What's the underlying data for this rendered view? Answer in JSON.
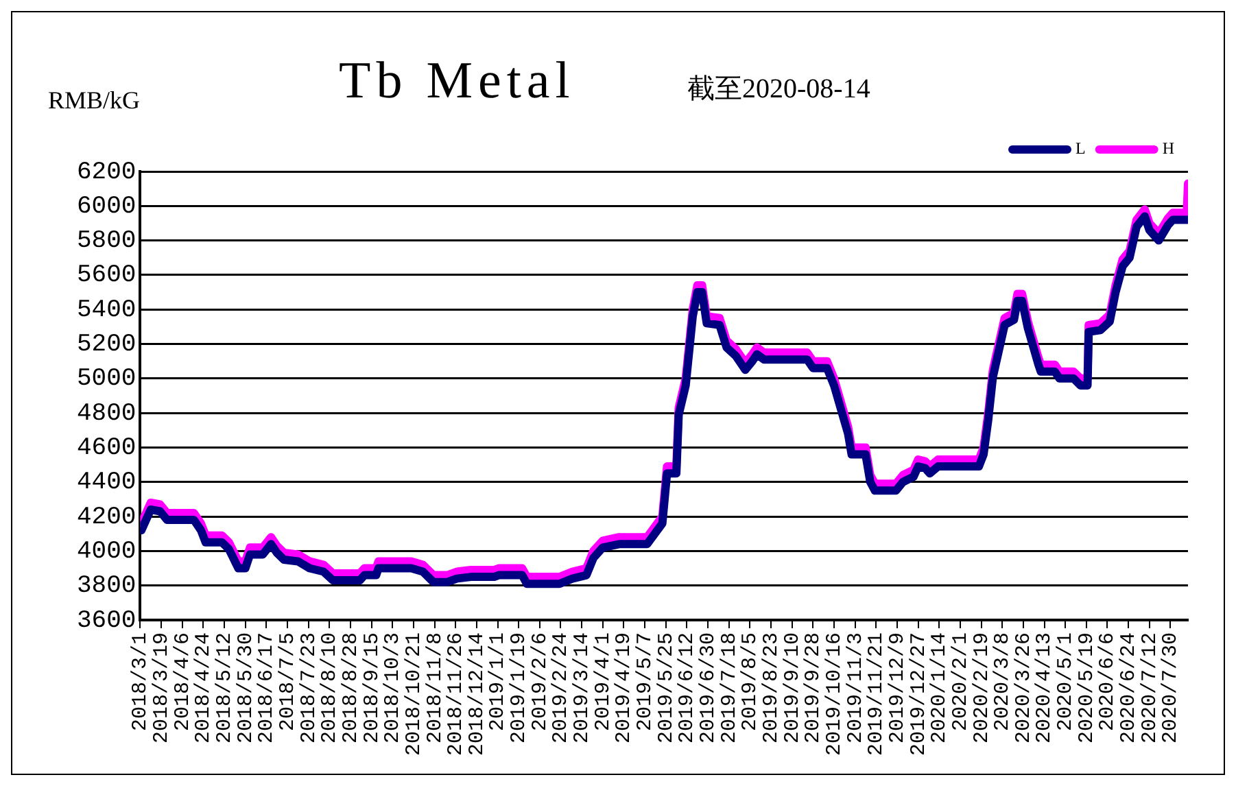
{
  "chart_data": {
    "type": "line",
    "title": "Tb Metal",
    "subtitle": "截至2020-08-14",
    "ylabel": "RMB/kG",
    "legend": "top right",
    "grid": "y",
    "marker": "none",
    "line_style": "solid",
    "ylim": [
      3600,
      6200
    ],
    "yticks": [
      3600,
      3800,
      4000,
      4200,
      4400,
      4600,
      4800,
      5000,
      5200,
      5400,
      5600,
      5800,
      6000,
      6200
    ],
    "xlim": [
      "2018-03-01",
      "2020-08-14"
    ],
    "xticks": [
      {
        "value": "2018-03-01",
        "label": "2018/3/1"
      },
      {
        "value": "2018-03-19",
        "label": "2018/3/19"
      },
      {
        "value": "2018-04-06",
        "label": "2018/4/6"
      },
      {
        "value": "2018-04-24",
        "label": "2018/4/24"
      },
      {
        "value": "2018-05-12",
        "label": "2018/5/12"
      },
      {
        "value": "2018-05-30",
        "label": "2018/5/30"
      },
      {
        "value": "2018-06-17",
        "label": "2018/6/17"
      },
      {
        "value": "2018-07-05",
        "label": "2018/7/5"
      },
      {
        "value": "2018-07-23",
        "label": "2018/7/23"
      },
      {
        "value": "2018-08-10",
        "label": "2018/8/10"
      },
      {
        "value": "2018-08-28",
        "label": "2018/8/28"
      },
      {
        "value": "2018-09-15",
        "label": "2018/9/15"
      },
      {
        "value": "2018-10-03",
        "label": "2018/10/3"
      },
      {
        "value": "2018-10-21",
        "label": "2018/10/21"
      },
      {
        "value": "2018-11-08",
        "label": "2018/11/8"
      },
      {
        "value": "2018-11-26",
        "label": "2018/11/26"
      },
      {
        "value": "2018-12-14",
        "label": "2018/12/14"
      },
      {
        "value": "2019-01-01",
        "label": "2019/1/1"
      },
      {
        "value": "2019-01-19",
        "label": "2019/1/19"
      },
      {
        "value": "2019-02-06",
        "label": "2019/2/6"
      },
      {
        "value": "2019-02-24",
        "label": "2019/2/24"
      },
      {
        "value": "2019-03-14",
        "label": "2019/3/14"
      },
      {
        "value": "2019-04-01",
        "label": "2019/4/1"
      },
      {
        "value": "2019-04-19",
        "label": "2019/4/19"
      },
      {
        "value": "2019-05-07",
        "label": "2019/5/7"
      },
      {
        "value": "2019-05-25",
        "label": "2019/5/25"
      },
      {
        "value": "2019-06-12",
        "label": "2019/6/12"
      },
      {
        "value": "2019-06-30",
        "label": "2019/6/30"
      },
      {
        "value": "2019-07-18",
        "label": "2019/7/18"
      },
      {
        "value": "2019-08-05",
        "label": "2019/8/5"
      },
      {
        "value": "2019-08-23",
        "label": "2019/8/23"
      },
      {
        "value": "2019-09-10",
        "label": "2019/9/10"
      },
      {
        "value": "2019-09-28",
        "label": "2019/9/28"
      },
      {
        "value": "2019-10-16",
        "label": "2019/10/16"
      },
      {
        "value": "2019-11-03",
        "label": "2019/11/3"
      },
      {
        "value": "2019-11-21",
        "label": "2019/11/21"
      },
      {
        "value": "2019-12-09",
        "label": "2019/12/9"
      },
      {
        "value": "2019-12-27",
        "label": "2019/12/27"
      },
      {
        "value": "2020-01-14",
        "label": "2020/1/14"
      },
      {
        "value": "2020-02-01",
        "label": "2020/2/1"
      },
      {
        "value": "2020-02-19",
        "label": "2020/2/19"
      },
      {
        "value": "2020-03-08",
        "label": "2020/3/8"
      },
      {
        "value": "2020-03-26",
        "label": "2020/3/26"
      },
      {
        "value": "2020-04-13",
        "label": "2020/4/13"
      },
      {
        "value": "2020-05-01",
        "label": "2020/5/1"
      },
      {
        "value": "2020-05-19",
        "label": "2020/5/19"
      },
      {
        "value": "2020-06-06",
        "label": "2020/6/6"
      },
      {
        "value": "2020-06-24",
        "label": "2020/6/24"
      },
      {
        "value": "2020-07-12",
        "label": "2020/7/12"
      },
      {
        "value": "2020-07-30",
        "label": "2020/7/30"
      }
    ],
    "x": [
      "2018-03-02",
      "2018-03-10",
      "2018-03-18",
      "2018-03-24",
      "2018-04-16",
      "2018-04-22",
      "2018-04-26",
      "2018-05-10",
      "2018-05-16",
      "2018-05-24",
      "2018-05-30",
      "2018-06-03",
      "2018-06-14",
      "2018-06-21",
      "2018-06-26",
      "2018-07-02",
      "2018-07-14",
      "2018-07-24",
      "2018-08-05",
      "2018-08-13",
      "2018-09-05",
      "2018-09-09",
      "2018-09-19",
      "2018-09-21",
      "2018-10-19",
      "2018-10-29",
      "2018-11-07",
      "2018-11-19",
      "2018-11-27",
      "2018-12-09",
      "2018-12-29",
      "2019-01-02",
      "2019-01-22",
      "2019-01-26",
      "2019-02-23",
      "2019-03-06",
      "2019-03-18",
      "2019-03-24",
      "2019-04-01",
      "2019-04-15",
      "2019-05-09",
      "2019-05-22",
      "2019-05-26",
      "2019-06-03",
      "2019-06-05",
      "2019-06-11",
      "2019-06-17",
      "2019-06-21",
      "2019-06-25",
      "2019-06-29",
      "2019-07-10",
      "2019-07-16",
      "2019-07-24",
      "2019-08-01",
      "2019-08-07",
      "2019-08-11",
      "2019-08-17",
      "2019-09-23",
      "2019-09-28",
      "2019-10-10",
      "2019-10-16",
      "2019-10-22",
      "2019-10-28",
      "2019-10-31",
      "2019-11-12",
      "2019-11-16",
      "2019-11-20",
      "2019-12-08",
      "2019-12-14",
      "2019-12-23",
      "2019-12-27",
      "2020-01-02",
      "2020-01-06",
      "2020-01-13",
      "2020-02-17",
      "2020-02-21",
      "2020-02-25",
      "2020-02-29",
      "2020-03-10",
      "2020-03-18",
      "2020-03-21",
      "2020-03-25",
      "2020-03-30",
      "2020-04-08",
      "2020-04-10",
      "2020-04-22",
      "2020-04-26",
      "2020-05-08",
      "2020-05-14",
      "2020-05-20",
      "2020-05-21",
      "2020-05-31",
      "2020-06-08",
      "2020-06-13",
      "2020-06-19",
      "2020-06-25",
      "2020-07-01",
      "2020-07-08",
      "2020-07-12",
      "2020-07-20",
      "2020-07-28",
      "2020-08-01",
      "2020-08-13",
      "2020-08-14"
    ],
    "series": [
      {
        "name": "L",
        "color": "#000080",
        "values": [
          4120,
          4240,
          4230,
          4180,
          4180,
          4120,
          4050,
          4050,
          4010,
          3900,
          3900,
          3980,
          3980,
          4040,
          3990,
          3950,
          3940,
          3900,
          3880,
          3830,
          3830,
          3860,
          3860,
          3900,
          3900,
          3880,
          3820,
          3820,
          3840,
          3850,
          3850,
          3860,
          3860,
          3810,
          3810,
          3840,
          3860,
          3960,
          4020,
          4040,
          4040,
          4160,
          4450,
          4450,
          4790,
          4960,
          5360,
          5500,
          5500,
          5320,
          5310,
          5180,
          5130,
          5050,
          5100,
          5140,
          5110,
          5110,
          5060,
          5060,
          4960,
          4820,
          4680,
          4560,
          4560,
          4400,
          4350,
          4350,
          4400,
          4430,
          4490,
          4480,
          4450,
          4490,
          4490,
          4560,
          4760,
          5010,
          5310,
          5340,
          5450,
          5450,
          5290,
          5080,
          5040,
          5040,
          5000,
          5000,
          4960,
          4960,
          5270,
          5280,
          5330,
          5500,
          5650,
          5700,
          5880,
          5940,
          5860,
          5800,
          5890,
          5920,
          5920,
          5920
        ]
      },
      {
        "name": "H",
        "color": "#ff00ff",
        "values": [
          4160,
          4280,
          4270,
          4220,
          4220,
          4160,
          4090,
          4090,
          4050,
          3940,
          3940,
          4020,
          4020,
          4080,
          4030,
          3990,
          3980,
          3940,
          3920,
          3870,
          3870,
          3900,
          3900,
          3940,
          3940,
          3920,
          3860,
          3860,
          3880,
          3890,
          3890,
          3900,
          3900,
          3850,
          3850,
          3880,
          3900,
          4000,
          4060,
          4080,
          4080,
          4200,
          4490,
          4490,
          4830,
          5000,
          5400,
          5540,
          5540,
          5360,
          5350,
          5220,
          5170,
          5090,
          5140,
          5180,
          5150,
          5150,
          5100,
          5100,
          5000,
          4860,
          4720,
          4600,
          4600,
          4440,
          4390,
          4390,
          4440,
          4470,
          4530,
          4520,
          4490,
          4530,
          4530,
          4600,
          4800,
          5050,
          5350,
          5380,
          5490,
          5490,
          5330,
          5120,
          5080,
          5080,
          5040,
          5040,
          5000,
          5000,
          5310,
          5320,
          5370,
          5540,
          5690,
          5740,
          5920,
          5980,
          5900,
          5840,
          5930,
          5960,
          5960,
          6130
        ]
      }
    ]
  }
}
